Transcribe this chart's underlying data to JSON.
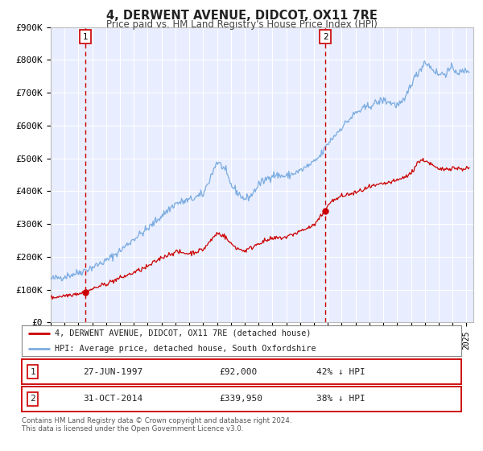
{
  "title": "4, DERWENT AVENUE, DIDCOT, OX11 7RE",
  "subtitle": "Price paid vs. HM Land Registry's House Price Index (HPI)",
  "background_color": "#ffffff",
  "plot_bg_color": "#e8eeff",
  "grid_color": "#ffffff",
  "red_line_color": "#cc0000",
  "blue_line_color": "#7aabe0",
  "marker1_date_num": 1997.49,
  "marker1_date_label": "27-JUN-1997",
  "marker1_price": 92000,
  "marker1_hpi_pct": "42% ↓ HPI",
  "marker2_date_num": 2014.83,
  "marker2_date_label": "31-OCT-2014",
  "marker2_price": 339950,
  "marker2_hpi_pct": "38% ↓ HPI",
  "ylim": [
    0,
    900000
  ],
  "xlim_start": 1995.0,
  "xlim_end": 2025.5,
  "ylabel_ticks": [
    "£0",
    "£100K",
    "£200K",
    "£300K",
    "£400K",
    "£500K",
    "£600K",
    "£700K",
    "£800K",
    "£900K"
  ],
  "ytick_vals": [
    0,
    100000,
    200000,
    300000,
    400000,
    500000,
    600000,
    700000,
    800000,
    900000
  ],
  "xtick_vals": [
    1995,
    1996,
    1997,
    1998,
    1999,
    2000,
    2001,
    2002,
    2003,
    2004,
    2005,
    2006,
    2007,
    2008,
    2009,
    2010,
    2011,
    2012,
    2013,
    2014,
    2015,
    2016,
    2017,
    2018,
    2019,
    2020,
    2021,
    2022,
    2023,
    2024,
    2025
  ],
  "legend_label_red": "4, DERWENT AVENUE, DIDCOT, OX11 7RE (detached house)",
  "legend_label_blue": "HPI: Average price, detached house, South Oxfordshire",
  "footer_line1": "Contains HM Land Registry data © Crown copyright and database right 2024.",
  "footer_line2": "This data is licensed under the Open Government Licence v3.0."
}
